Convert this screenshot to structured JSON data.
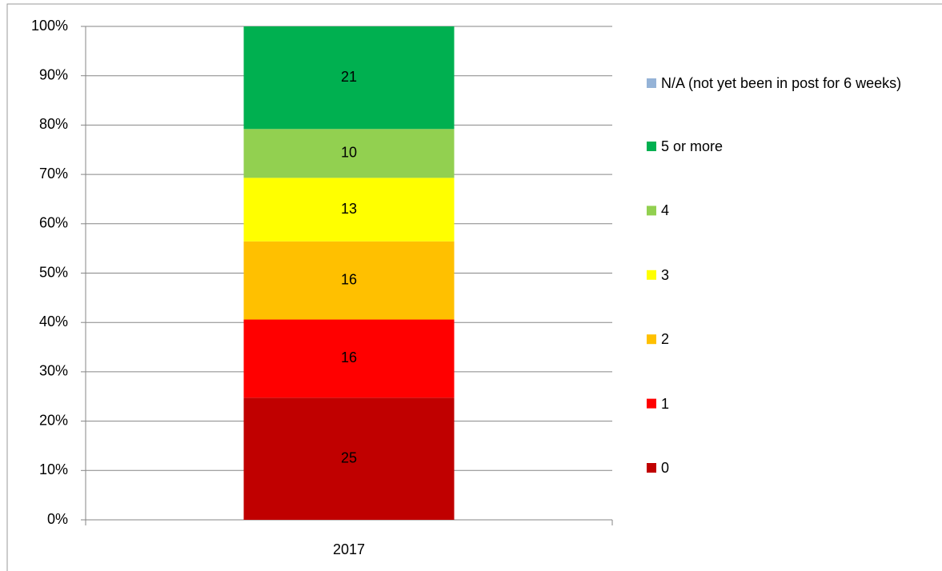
{
  "chart_data": {
    "type": "bar",
    "stack": "percent",
    "categories": [
      "2017"
    ],
    "series": [
      {
        "name": "0",
        "color": "#c00000",
        "values": [
          25
        ]
      },
      {
        "name": "1",
        "color": "#ff0000",
        "values": [
          16
        ]
      },
      {
        "name": "2",
        "color": "#ffc000",
        "values": [
          16
        ]
      },
      {
        "name": "3",
        "color": "#ffff00",
        "values": [
          13
        ]
      },
      {
        "name": "4",
        "color": "#92d050",
        "values": [
          10
        ]
      },
      {
        "name": "5 or more",
        "color": "#00b050",
        "values": [
          21
        ]
      },
      {
        "name": "N/A (not yet been in post for 6 weeks)",
        "color": "#95b3d7",
        "values": [
          0
        ]
      }
    ],
    "ylim": [
      0,
      100
    ],
    "yticks": [
      {
        "value": 0,
        "label": "0%"
      },
      {
        "value": 10,
        "label": "10%"
      },
      {
        "value": 20,
        "label": "20%"
      },
      {
        "value": 30,
        "label": "30%"
      },
      {
        "value": 40,
        "label": "40%"
      },
      {
        "value": 50,
        "label": "50%"
      },
      {
        "value": 60,
        "label": "60%"
      },
      {
        "value": 70,
        "label": "70%"
      },
      {
        "value": 80,
        "label": "80%"
      },
      {
        "value": 90,
        "label": "90%"
      },
      {
        "value": 100,
        "label": "100%"
      }
    ],
    "grid": true,
    "legend": "right"
  }
}
